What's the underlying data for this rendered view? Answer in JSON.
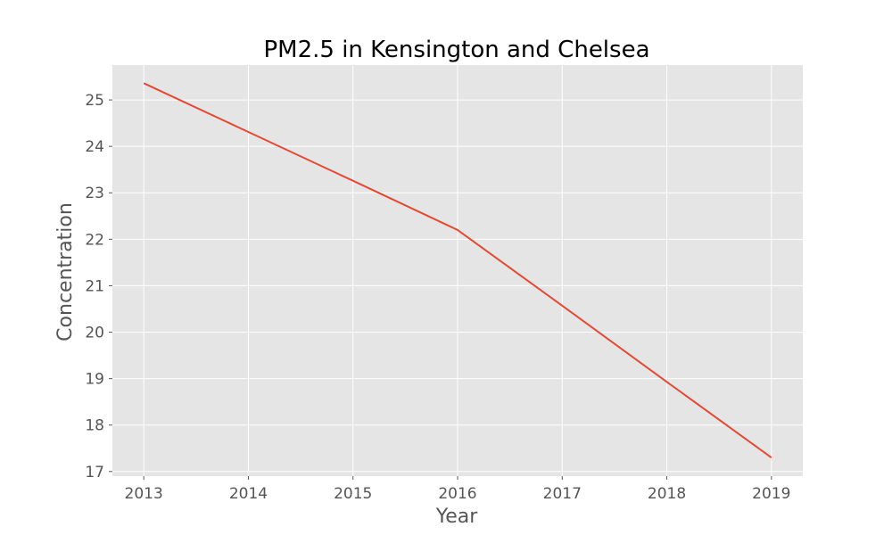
{
  "chart_data": {
    "type": "line",
    "title": "PM2.5 in Kensington and Chelsea",
    "xlabel": "Year",
    "ylabel": "Concentration",
    "x": [
      2013,
      2014,
      2015,
      2016,
      2017,
      2018,
      2019
    ],
    "series": [
      {
        "values": [
          25.36,
          24.31,
          23.26,
          22.2,
          20.57,
          18.93,
          17.3
        ],
        "color": "#E24A33"
      }
    ],
    "xlim": [
      2012.7,
      2019.3
    ],
    "ylim": [
      16.9,
      25.75
    ],
    "xticks": [
      "2013",
      "2014",
      "2015",
      "2016",
      "2017",
      "2018",
      "2019"
    ],
    "yticks": [
      "17",
      "18",
      "19",
      "20",
      "21",
      "22",
      "23",
      "24",
      "25"
    ],
    "grid": true,
    "background": "#E5E5E5"
  }
}
